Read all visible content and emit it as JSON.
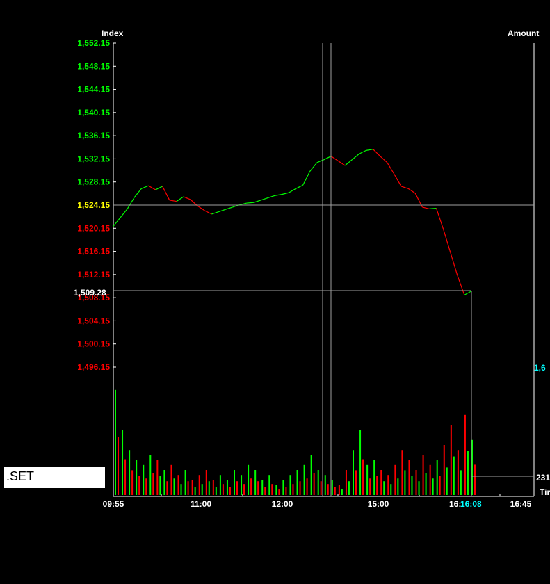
{
  "chart_data": {
    "type": "line",
    "symbol": ".SET",
    "left_axis_title": "Index",
    "right_axis_title": "Amount",
    "right_axis_corner_label": "Tim",
    "previous_close": 1524.15,
    "crosshair_value": "1,509.28",
    "price_ticks": [
      {
        "label": "1,552.15",
        "value": 1552.15,
        "color": "#00ff00"
      },
      {
        "label": "1,548.15",
        "value": 1548.15,
        "color": "#00ff00"
      },
      {
        "label": "1,544.15",
        "value": 1544.15,
        "color": "#00ff00"
      },
      {
        "label": "1,540.15",
        "value": 1540.15,
        "color": "#00ff00"
      },
      {
        "label": "1,536.15",
        "value": 1536.15,
        "color": "#00ff00"
      },
      {
        "label": "1,532.15",
        "value": 1532.15,
        "color": "#00ff00"
      },
      {
        "label": "1,528.15",
        "value": 1528.15,
        "color": "#00ff00"
      },
      {
        "label": "1,524.15",
        "value": 1524.15,
        "color": "#ffff00"
      },
      {
        "label": "1,520.15",
        "value": 1520.15,
        "color": "#ff0000"
      },
      {
        "label": "1,516.15",
        "value": 1516.15,
        "color": "#ff0000"
      },
      {
        "label": "1,512.15",
        "value": 1512.15,
        "color": "#ff0000"
      },
      {
        "label": "1,508.15",
        "value": 1508.15,
        "color": "#ff0000"
      },
      {
        "label": "1,504.15",
        "value": 1504.15,
        "color": "#ff0000"
      },
      {
        "label": "1,500.15",
        "value": 1500.15,
        "color": "#ff0000"
      },
      {
        "label": "1,496.15",
        "value": 1496.15,
        "color": "#ff0000"
      }
    ],
    "time_ticks": [
      "09:55",
      "11:00",
      "12:00",
      "15:00",
      "16:",
      "16:45"
    ],
    "current_time": "16:08",
    "volume_top_label": "1,6",
    "volume_current_label": "231",
    "ylim": [
      1496.15,
      1552.15
    ],
    "series": [
      {
        "values": [
          1520.5,
          1522.0,
          1523.5,
          1525.5,
          1527.0,
          1527.5,
          1526.8,
          1527.4,
          1525.0,
          1524.8,
          1525.6,
          1525.1,
          1524.0,
          1523.2,
          1522.6,
          1523.0,
          1523.4,
          1523.8,
          1524.2,
          1524.5,
          1524.6,
          1525.0,
          1525.4,
          1525.8,
          1526.0,
          1526.3,
          1527.0,
          1527.6,
          1530.0,
          1531.5,
          1532.0,
          1532.6,
          1531.8,
          1531.0,
          1532.0,
          1533.0,
          1533.6,
          1533.8,
          1532.6,
          1531.5,
          1529.5,
          1527.4,
          1527.0,
          1526.2,
          1523.8,
          1523.5,
          1523.6,
          1520.0,
          1516.0,
          1512.0,
          1508.6,
          1509.28
        ]
      }
    ],
    "volume": [
      21,
      13,
      9,
      7,
      6,
      8,
      7,
      5,
      6,
      4,
      5,
      3,
      4,
      5,
      3,
      4,
      3,
      5,
      4,
      6,
      5,
      3,
      4,
      2,
      3,
      4,
      5,
      6,
      8,
      5,
      4,
      3,
      2,
      5,
      9,
      13,
      6,
      7,
      5,
      4,
      6,
      9,
      7,
      5,
      8,
      6,
      7,
      10,
      14,
      9,
      16,
      11
    ]
  },
  "colors": {
    "background": "#000000",
    "up": "#00ff00",
    "down": "#ff0000",
    "axis": "#ffffff",
    "grid": "#a0a0a0",
    "current_time": "#00ffff"
  }
}
